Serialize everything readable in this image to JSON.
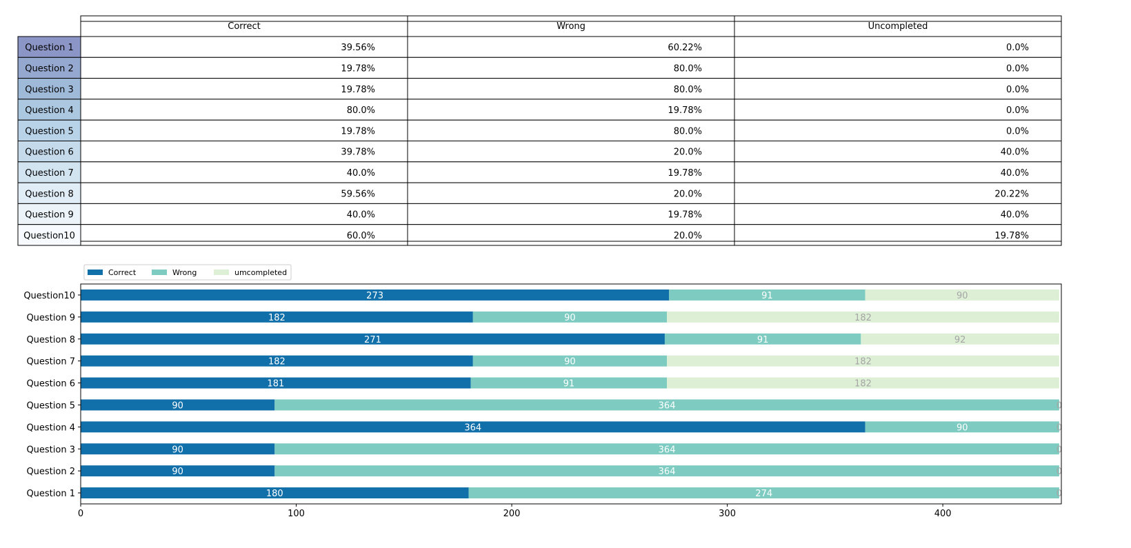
{
  "table": {
    "columns": [
      "Correct",
      "Wrong",
      "Uncompleted"
    ],
    "rows": [
      {
        "label": "Question 1",
        "color": "#8c96c6",
        "cells": [
          "39.56%",
          "60.22%",
          "0.0%"
        ]
      },
      {
        "label": "Question 2",
        "color": "#95a8cf",
        "cells": [
          "19.78%",
          "80.0%",
          "0.0%"
        ]
      },
      {
        "label": "Question 3",
        "color": "#9fbad9",
        "cells": [
          "19.78%",
          "80.0%",
          "0.0%"
        ]
      },
      {
        "label": "Question 4",
        "color": "#acc8e1",
        "cells": [
          "80.0%",
          "19.78%",
          "0.0%"
        ]
      },
      {
        "label": "Question 5",
        "color": "#b8d2e7",
        "cells": [
          "19.78%",
          "80.0%",
          "0.0%"
        ]
      },
      {
        "label": "Question 6",
        "color": "#c5dbec",
        "cells": [
          "39.78%",
          "20.0%",
          "40.0%"
        ]
      },
      {
        "label": "Question 7",
        "color": "#d3e4f1",
        "cells": [
          "40.0%",
          "19.78%",
          "40.0%"
        ]
      },
      {
        "label": "Question 8",
        "color": "#e0ecf6",
        "cells": [
          "59.56%",
          "20.0%",
          "20.22%"
        ]
      },
      {
        "label": "Question 9",
        "color": "#ecf4fa",
        "cells": [
          "40.0%",
          "19.78%",
          "40.0%"
        ]
      },
      {
        "label": "Question10",
        "color": "#f7fbff",
        "cells": [
          "60.0%",
          "20.0%",
          "19.78%"
        ]
      }
    ]
  },
  "chart_data": {
    "type": "bar",
    "orientation": "horizontal",
    "stacked": true,
    "categories": [
      "Question 1",
      "Question 2",
      "Question 3",
      "Question 4",
      "Question 5",
      "Question 6",
      "Question 7",
      "Question 8",
      "Question 9",
      "Question10"
    ],
    "series": [
      {
        "name": "Correct",
        "color": "#1170aa",
        "label_color": "#ffffff",
        "values": [
          180,
          90,
          90,
          364,
          90,
          181,
          182,
          271,
          182,
          273
        ]
      },
      {
        "name": "Wrong",
        "color": "#7ecbc1",
        "label_color": "#ffffff",
        "values": [
          274,
          364,
          364,
          90,
          364,
          91,
          90,
          91,
          90,
          91
        ]
      },
      {
        "name": "umcompleted",
        "color": "#ddf0d6",
        "label_color": "#a5a5a5",
        "values": [
          0,
          0,
          0,
          0,
          0,
          182,
          182,
          92,
          182,
          90
        ]
      }
    ],
    "xlim": [
      0,
      455
    ],
    "xticks": [
      0,
      100,
      200,
      300,
      400
    ],
    "legend": "top-left",
    "grid": false
  }
}
